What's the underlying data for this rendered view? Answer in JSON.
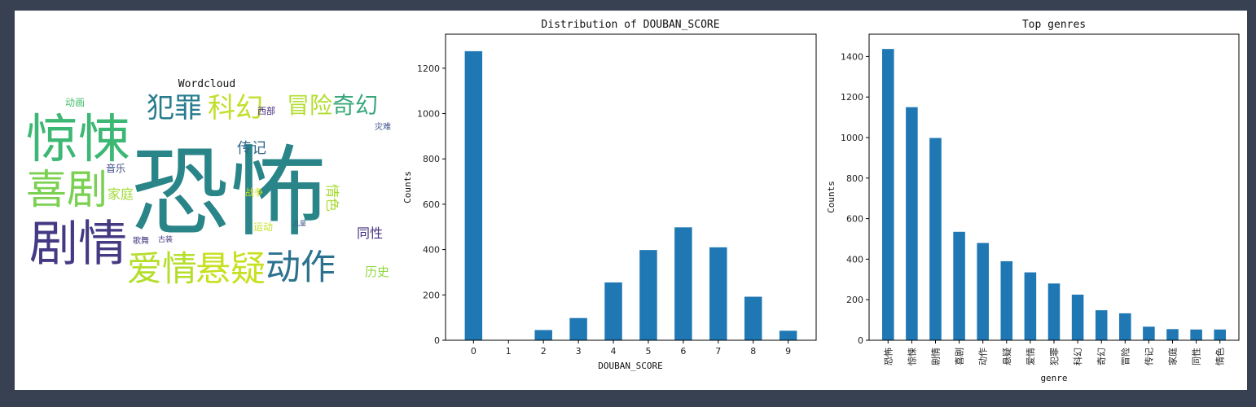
{
  "chart_data": [
    {
      "type": "wordcloud",
      "title": "Wordcloud",
      "words": [
        {
          "text": "恐怖",
          "weight": 1.0,
          "color": "#2a8589"
        },
        {
          "text": "惊悚",
          "weight": 0.5,
          "color": "#3cb874"
        },
        {
          "text": "剧情",
          "weight": 0.42,
          "color": "#443a83"
        },
        {
          "text": "喜剧",
          "weight": 0.4,
          "color": "#7ad151"
        },
        {
          "text": "爱情",
          "weight": 0.31,
          "color": "#b5de2b"
        },
        {
          "text": "悬疑",
          "weight": 0.31,
          "color": "#c7e020"
        },
        {
          "text": "动作",
          "weight": 0.31,
          "color": "#2c728e"
        },
        {
          "text": "犯罪",
          "weight": 0.24,
          "color": "#287c8e"
        },
        {
          "text": "科幻",
          "weight": 0.24,
          "color": "#c3df2e"
        },
        {
          "text": "冒险",
          "weight": 0.19,
          "color": "#b2dd2d"
        },
        {
          "text": "奇幻",
          "weight": 0.19,
          "color": "#39a77a"
        },
        {
          "text": "传记",
          "weight": 0.12,
          "color": "#31688e"
        },
        {
          "text": "家庭",
          "weight": 0.11,
          "color": "#a2da37"
        },
        {
          "text": "同性",
          "weight": 0.11,
          "color": "#46327e"
        },
        {
          "text": "情色",
          "weight": 0.11,
          "color": "#a8db34"
        },
        {
          "text": "历史",
          "weight": 0.1,
          "color": "#93d741"
        },
        {
          "text": "音乐",
          "weight": 0.08,
          "color": "#3e4a89"
        },
        {
          "text": "动画",
          "weight": 0.08,
          "color": "#4ac16d"
        },
        {
          "text": "西部",
          "weight": 0.07,
          "color": "#482878"
        },
        {
          "text": "运动",
          "weight": 0.07,
          "color": "#c2df23"
        },
        {
          "text": "战争",
          "weight": 0.07,
          "color": "#d8e219"
        },
        {
          "text": "灾难",
          "weight": 0.06,
          "color": "#3b528b"
        },
        {
          "text": "歌舞",
          "weight": 0.06,
          "color": "#443983"
        },
        {
          "text": "古装",
          "weight": 0.05,
          "color": "#46337e"
        },
        {
          "text": "儿童",
          "weight": 0.05,
          "color": "#3a538b"
        }
      ]
    },
    {
      "type": "bar",
      "title": "Distribution of DOUBAN_SCORE",
      "xlabel": "DOUBAN_SCORE",
      "ylabel": "Counts",
      "categories": [
        "0",
        "1",
        "2",
        "3",
        "4",
        "5",
        "6",
        "7",
        "8",
        "9"
      ],
      "values": [
        1275,
        0,
        45,
        98,
        255,
        398,
        498,
        410,
        192,
        42
      ],
      "ylim": [
        0,
        1350
      ],
      "yticks": [
        0,
        200,
        400,
        600,
        800,
        1000,
        1200
      ],
      "color": "#1f77b4"
    },
    {
      "type": "bar",
      "title": "Top genres",
      "xlabel": "genre",
      "ylabel": "Counts",
      "categories": [
        "恐怖",
        "惊悚",
        "剧情",
        "喜剧",
        "动作",
        "悬疑",
        "爱情",
        "犯罪",
        "科幻",
        "奇幻",
        "冒险",
        "传记",
        "家庭",
        "同性",
        "情色"
      ],
      "values": [
        1437,
        1150,
        998,
        535,
        480,
        390,
        335,
        280,
        225,
        148,
        133,
        67,
        55,
        53,
        53
      ],
      "ylim": [
        0,
        1510
      ],
      "yticks": [
        0,
        200,
        400,
        600,
        800,
        1000,
        1200,
        1400
      ],
      "color": "#1f77b4"
    }
  ]
}
